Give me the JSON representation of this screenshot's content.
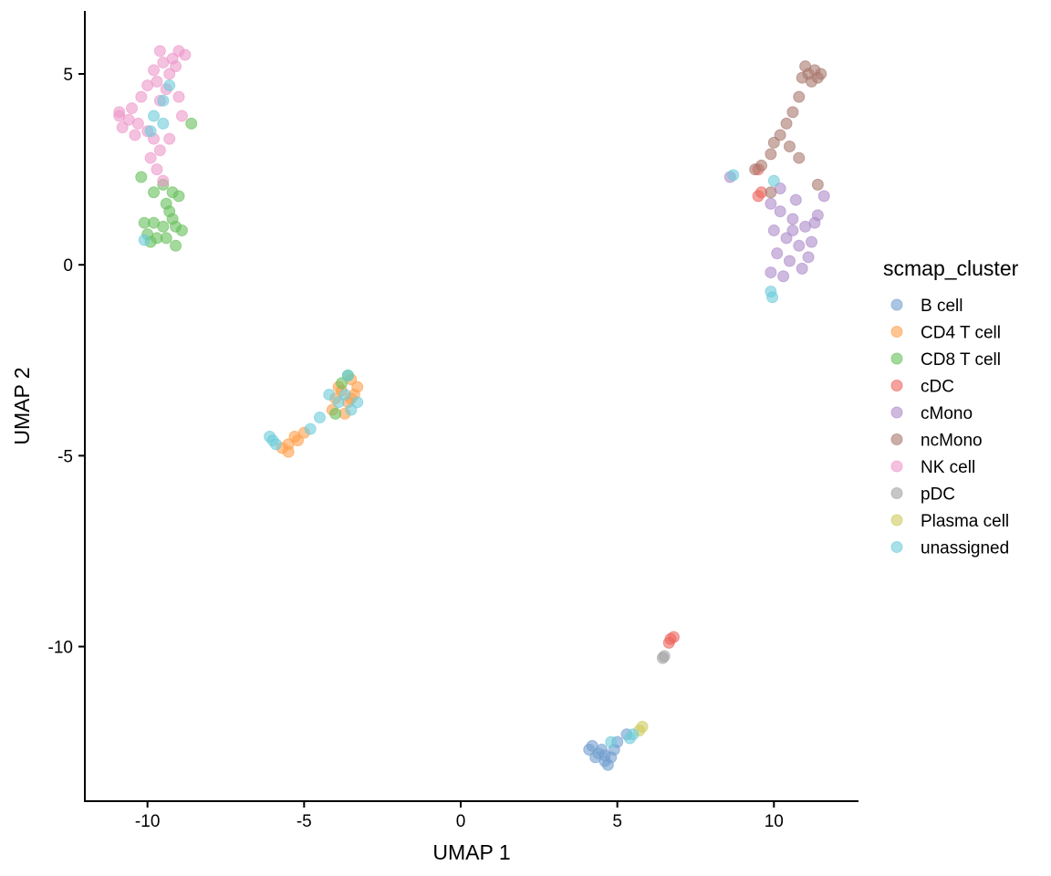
{
  "chart_data": {
    "type": "scatter",
    "title": "",
    "xlabel": "UMAP 1",
    "ylabel": "UMAP 2",
    "xlim": [
      -12.0,
      12.7
    ],
    "ylim": [
      -14.05,
      6.65
    ],
    "xticks": [
      -10,
      -5,
      0,
      5,
      10
    ],
    "yticks": [
      5,
      0,
      -5,
      -10
    ],
    "xtick_labels": [
      "-10",
      "-5",
      "0",
      "5",
      "10"
    ],
    "ytick_labels": [
      "5",
      "0",
      "-5",
      "-10"
    ],
    "grid": false,
    "point_alpha": 0.6,
    "legend": {
      "title": "scmap_cluster",
      "placement": "right"
    },
    "series": [
      {
        "name": "B cell",
        "color": "#729ece",
        "points": [
          [
            4.2,
            -12.6
          ],
          [
            4.4,
            -12.8
          ],
          [
            4.6,
            -13.0
          ],
          [
            4.8,
            -12.9
          ],
          [
            4.3,
            -12.9
          ],
          [
            4.9,
            -12.7
          ],
          [
            4.5,
            -12.7
          ],
          [
            5.0,
            -12.5
          ],
          [
            5.3,
            -12.3
          ],
          [
            4.7,
            -13.1
          ],
          [
            4.1,
            -12.7
          ],
          [
            4.6,
            -12.85
          ]
        ]
      },
      {
        "name": "CD4 T cell",
        "color": "#ff9e4a",
        "points": [
          [
            -3.8,
            -3.3
          ],
          [
            -3.5,
            -3.0
          ],
          [
            -3.6,
            -3.6
          ],
          [
            -4.0,
            -3.5
          ],
          [
            -3.4,
            -3.4
          ],
          [
            -3.7,
            -3.9
          ],
          [
            -4.1,
            -3.8
          ],
          [
            -3.3,
            -3.2
          ],
          [
            -5.3,
            -4.5
          ],
          [
            -5.5,
            -4.7
          ],
          [
            -5.7,
            -4.8
          ],
          [
            -5.5,
            -4.9
          ],
          [
            -5.0,
            -4.4
          ],
          [
            -5.2,
            -4.6
          ],
          [
            -3.9,
            -3.2
          ],
          [
            -3.5,
            -3.5
          ]
        ]
      },
      {
        "name": "CD8 T cell",
        "color": "#67bf5c",
        "points": [
          [
            -9.5,
            2.1
          ],
          [
            -9.8,
            1.9
          ],
          [
            -9.2,
            1.9
          ],
          [
            -9.0,
            1.8
          ],
          [
            -9.4,
            1.6
          ],
          [
            -9.3,
            1.4
          ],
          [
            -9.2,
            1.2
          ],
          [
            -10.1,
            1.1
          ],
          [
            -9.8,
            1.1
          ],
          [
            -9.5,
            1.0
          ],
          [
            -9.1,
            1.0
          ],
          [
            -10.0,
            0.8
          ],
          [
            -9.7,
            0.7
          ],
          [
            -9.4,
            0.7
          ],
          [
            -9.1,
            0.5
          ],
          [
            -8.9,
            0.9
          ],
          [
            -9.9,
            0.6
          ],
          [
            -8.6,
            3.7
          ],
          [
            -10.2,
            2.3
          ],
          [
            -3.8,
            -3.1
          ],
          [
            -4.0,
            -3.9
          ],
          [
            -3.6,
            -2.9
          ]
        ]
      },
      {
        "name": "cDC",
        "color": "#ed665d",
        "points": [
          [
            9.5,
            2.5
          ],
          [
            9.6,
            1.9
          ],
          [
            9.5,
            1.8
          ],
          [
            6.7,
            -9.8
          ],
          [
            6.8,
            -9.75
          ],
          [
            6.65,
            -9.9
          ]
        ]
      },
      {
        "name": "cMono",
        "color": "#ad8bc9",
        "points": [
          [
            9.9,
            1.6
          ],
          [
            10.2,
            1.4
          ],
          [
            10.6,
            1.2
          ],
          [
            11.0,
            1.0
          ],
          [
            11.4,
            1.3
          ],
          [
            11.6,
            1.8
          ],
          [
            10.0,
            0.9
          ],
          [
            10.4,
            0.7
          ],
          [
            10.8,
            0.5
          ],
          [
            11.2,
            0.6
          ],
          [
            10.1,
            0.3
          ],
          [
            10.5,
            0.1
          ],
          [
            10.9,
            -0.1
          ],
          [
            11.1,
            0.2
          ],
          [
            10.3,
            -0.3
          ],
          [
            9.9,
            -0.2
          ],
          [
            10.7,
            1.7
          ],
          [
            8.6,
            2.3
          ],
          [
            10.2,
            2.0
          ],
          [
            10.6,
            0.9
          ],
          [
            11.3,
            1.1
          ]
        ]
      },
      {
        "name": "ncMono",
        "color": "#a8786e",
        "points": [
          [
            11.0,
            5.2
          ],
          [
            11.3,
            5.1
          ],
          [
            11.5,
            5.0
          ],
          [
            10.9,
            4.9
          ],
          [
            11.2,
            4.8
          ],
          [
            11.4,
            4.9
          ],
          [
            10.8,
            4.4
          ],
          [
            10.6,
            4.0
          ],
          [
            10.4,
            3.7
          ],
          [
            10.2,
            3.4
          ],
          [
            10.0,
            3.2
          ],
          [
            9.9,
            2.9
          ],
          [
            9.6,
            2.6
          ],
          [
            9.4,
            2.5
          ],
          [
            10.8,
            2.8
          ],
          [
            11.4,
            2.1
          ],
          [
            9.9,
            1.9
          ],
          [
            10.5,
            3.1
          ],
          [
            11.1,
            5.0
          ]
        ]
      },
      {
        "name": "NK cell",
        "color": "#ed97ca",
        "points": [
          [
            -9.0,
            5.6
          ],
          [
            -8.8,
            5.5
          ],
          [
            -9.2,
            5.4
          ],
          [
            -9.5,
            5.3
          ],
          [
            -9.8,
            5.1
          ],
          [
            -9.3,
            5.0
          ],
          [
            -9.7,
            4.8
          ],
          [
            -10.0,
            4.7
          ],
          [
            -9.4,
            4.6
          ],
          [
            -10.2,
            4.4
          ],
          [
            -9.6,
            4.3
          ],
          [
            -10.5,
            4.1
          ],
          [
            -10.9,
            4.0
          ],
          [
            -10.6,
            3.8
          ],
          [
            -10.3,
            3.7
          ],
          [
            -10.8,
            3.6
          ],
          [
            -10.0,
            3.5
          ],
          [
            -10.4,
            3.4
          ],
          [
            -9.8,
            3.3
          ],
          [
            -9.6,
            3.0
          ],
          [
            -9.9,
            2.8
          ],
          [
            -9.7,
            2.5
          ],
          [
            -9.5,
            2.2
          ],
          [
            -9.0,
            4.4
          ],
          [
            -8.9,
            3.9
          ],
          [
            -9.3,
            3.3
          ],
          [
            -9.1,
            5.2
          ],
          [
            -9.6,
            5.6
          ],
          [
            -10.9,
            3.9
          ]
        ]
      },
      {
        "name": "pDC",
        "color": "#a2a2a2",
        "points": [
          [
            6.45,
            -10.3
          ],
          [
            6.5,
            -10.25
          ]
        ]
      },
      {
        "name": "Plasma cell",
        "color": "#cdcc5d",
        "points": [
          [
            5.8,
            -12.1
          ],
          [
            5.7,
            -12.2
          ]
        ]
      },
      {
        "name": "unassigned",
        "color": "#6dccda",
        "points": [
          [
            -9.5,
            4.3
          ],
          [
            -9.8,
            3.9
          ],
          [
            -9.5,
            3.7
          ],
          [
            -9.9,
            3.5
          ],
          [
            -9.3,
            4.7
          ],
          [
            -10.1,
            0.65
          ],
          [
            -3.6,
            -2.9
          ],
          [
            -3.9,
            -3.6
          ],
          [
            -4.2,
            -3.4
          ],
          [
            -3.3,
            -3.6
          ],
          [
            -3.7,
            -3.4
          ],
          [
            -4.5,
            -4.0
          ],
          [
            -4.8,
            -4.3
          ],
          [
            -6.1,
            -4.5
          ],
          [
            -6.0,
            -4.6
          ],
          [
            -5.9,
            -4.7
          ],
          [
            -3.5,
            -3.8
          ],
          [
            9.9,
            -0.7
          ],
          [
            9.95,
            -0.85
          ],
          [
            10.0,
            2.2
          ],
          [
            8.7,
            2.35
          ],
          [
            4.8,
            -12.5
          ],
          [
            5.5,
            -12.3
          ],
          [
            5.4,
            -12.4
          ]
        ]
      }
    ]
  }
}
